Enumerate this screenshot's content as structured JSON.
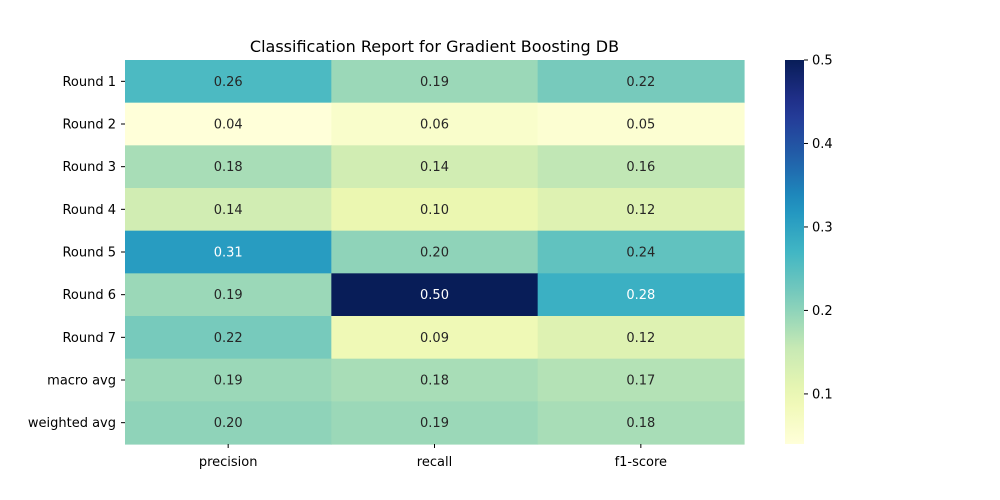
{
  "chart_data": {
    "type": "heatmap",
    "title": "Classification Report for Gradient Boosting DB",
    "xlabel": "",
    "ylabel": "",
    "columns": [
      "precision",
      "recall",
      "f1-score"
    ],
    "rows": [
      "Round 1",
      "Round 2",
      "Round 3",
      "Round 4",
      "Round 5",
      "Round 6",
      "Round 7",
      "macro avg",
      "weighted avg"
    ],
    "values": [
      [
        0.26,
        0.19,
        0.22
      ],
      [
        0.04,
        0.06,
        0.05
      ],
      [
        0.18,
        0.14,
        0.16
      ],
      [
        0.14,
        0.1,
        0.12
      ],
      [
        0.31,
        0.2,
        0.24
      ],
      [
        0.19,
        0.5,
        0.28
      ],
      [
        0.22,
        0.09,
        0.12
      ],
      [
        0.19,
        0.18,
        0.17
      ],
      [
        0.2,
        0.19,
        0.18
      ]
    ],
    "value_format": "2 decimals",
    "colormap": "YlGnBu",
    "color_range": [
      0.04,
      0.5
    ],
    "colorbar_ticks": [
      "0.1",
      "0.2",
      "0.3",
      "0.4",
      "0.5"
    ],
    "colorbar_tick_values": [
      0.1,
      0.2,
      0.3,
      0.4,
      0.5
    ],
    "annotation_colors": {
      "dark": "#262626",
      "light": "#ffffff"
    }
  }
}
